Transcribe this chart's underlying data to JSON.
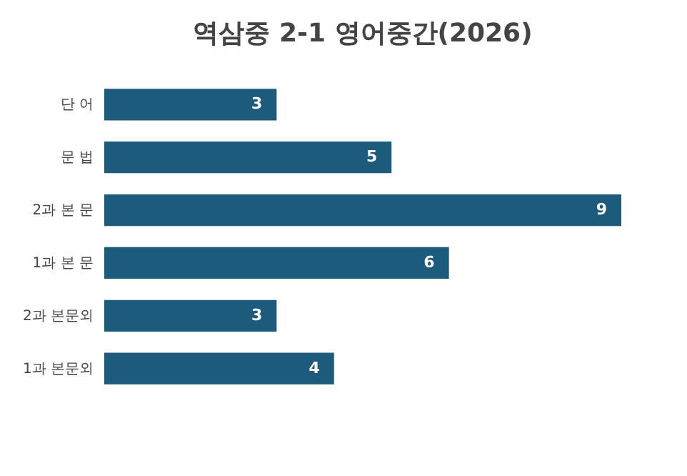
{
  "chart_data": {
    "type": "bar",
    "orientation": "horizontal",
    "title": "역삼중 2-1 영어중간(2026)",
    "categories": [
      "단 어",
      "문 법",
      "2과 본 문",
      "1과 본 문",
      "2과 본문외",
      "1과 본문외"
    ],
    "values": [
      3,
      5,
      9,
      6,
      3,
      4
    ],
    "color": "#1d5b7d",
    "data_labels": true
  }
}
